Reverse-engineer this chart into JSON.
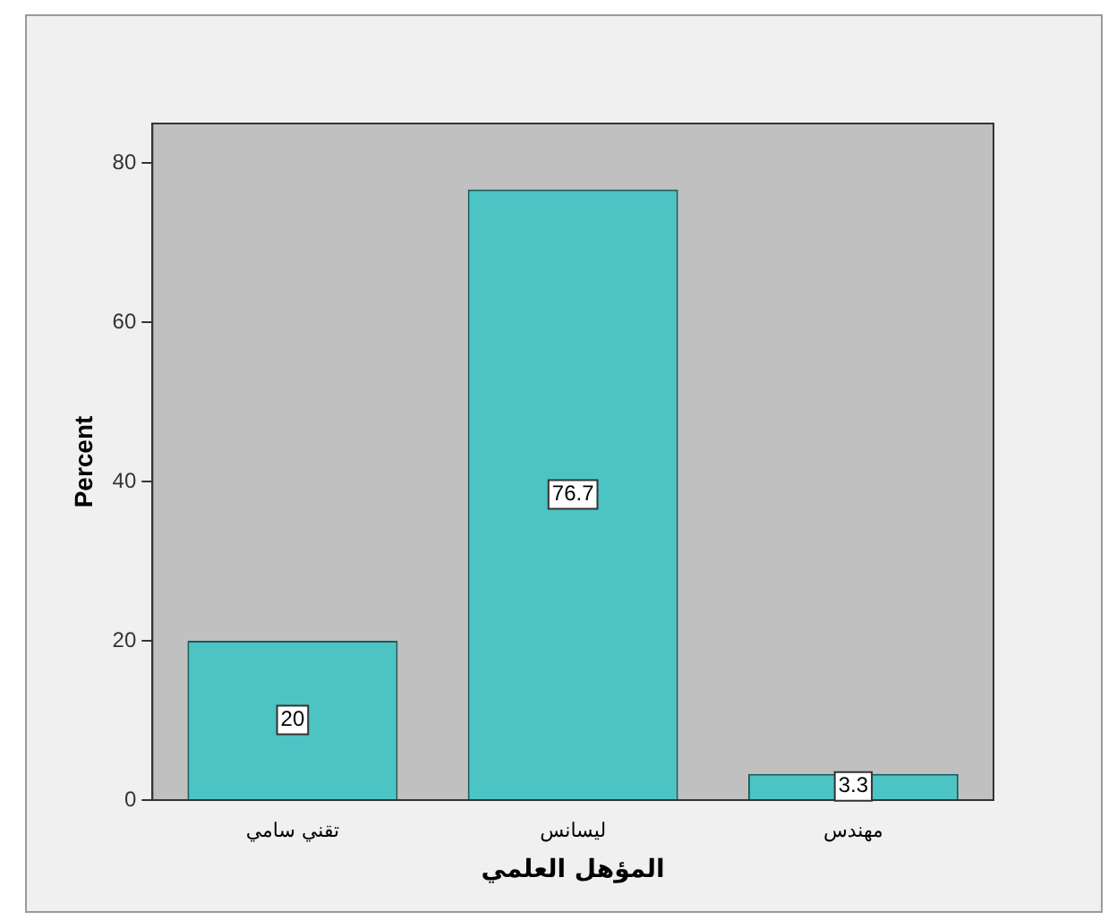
{
  "chart_data": {
    "type": "bar",
    "xlabel": "المؤهل العلمي",
    "ylabel": "Percent",
    "categories": [
      "تقني سامي",
      "ليسانس",
      "مهندس"
    ],
    "values": [
      20,
      76.7,
      3.3
    ],
    "color": "#4cc4c4",
    "data_labels": true,
    "ylim": [
      0,
      85
    ],
    "yticks": [
      0,
      20,
      40,
      60,
      80
    ],
    "grid": false,
    "legend": false
  }
}
